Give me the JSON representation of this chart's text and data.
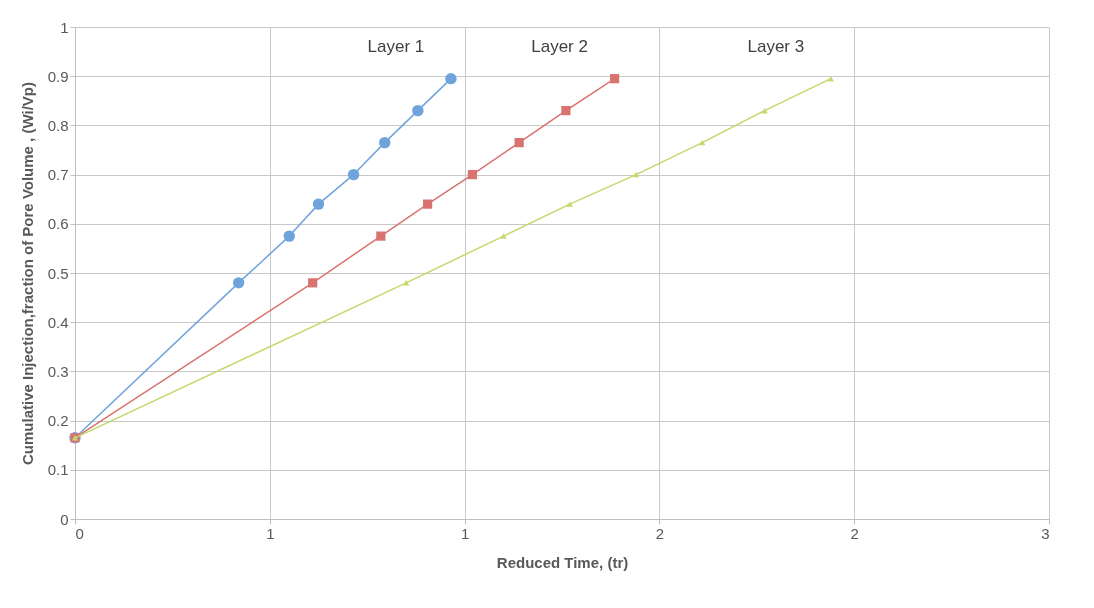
{
  "chart_data": {
    "type": "line",
    "xlabel": "Reduced Time, (tr)",
    "ylabel": "Cumulative Injection,fraction of Pore Volume , (Wi/Vp)",
    "xlim": [
      0,
      2.5
    ],
    "xticks": [
      0,
      {
        "value": 0.5,
        "label": "1"
      },
      1,
      {
        "value": 1.5,
        "label": "2"
      },
      2,
      {
        "value": 2.5,
        "label": "3"
      }
    ],
    "ylim": [
      0,
      1
    ],
    "yticks": [
      0,
      0.1,
      0.2,
      0.3,
      0.4,
      0.5,
      0.6,
      0.7,
      0.8,
      0.9,
      1
    ],
    "grid": true,
    "series": [
      {
        "name": "Layer 1",
        "color": "#6fa3dc",
        "marker": "circle",
        "x": [
          0,
          0.42,
          0.55,
          0.625,
          0.715,
          0.795,
          0.88,
          0.965
        ],
        "values": [
          0.165,
          0.48,
          0.575,
          0.64,
          0.7,
          0.765,
          0.83,
          0.895
        ]
      },
      {
        "name": "Layer 2",
        "color": "#d9736f",
        "marker": "square",
        "x": [
          0,
          0.61,
          0.785,
          0.905,
          1.02,
          1.14,
          1.26,
          1.385
        ],
        "values": [
          0.165,
          0.48,
          0.575,
          0.64,
          0.7,
          0.765,
          0.83,
          0.895
        ]
      },
      {
        "name": "Layer 3",
        "color": "#c3d96c",
        "marker": "triangle",
        "x": [
          0,
          0.85,
          1.1,
          1.27,
          1.44,
          1.61,
          1.77,
          1.94
        ],
        "values": [
          0.165,
          0.48,
          0.575,
          0.64,
          0.7,
          0.765,
          0.83,
          0.895
        ]
      }
    ]
  }
}
